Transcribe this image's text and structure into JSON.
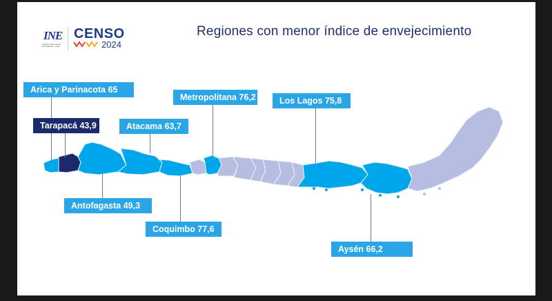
{
  "title": "Regiones con menor índice de envejecimiento",
  "logos": {
    "ine_mark": "INE",
    "ine_sub": "Instituto Nacional de Estadísticas · Chile",
    "censo_word": "CENSO",
    "censo_year": "2024"
  },
  "colors": {
    "highlight": "#00a6ea",
    "lowest": "#1a2a6b",
    "other": "#b6bde0",
    "label_bg": "#2aa6e6"
  },
  "regions": [
    {
      "id": "arica",
      "text": "Arica y Parinacota 65"
    },
    {
      "id": "tarapaca",
      "text": "Tarapacá 43,9"
    },
    {
      "id": "antofagasta",
      "text": "Antofagasta 49,3"
    },
    {
      "id": "atacama",
      "text": "Atacama 63,7"
    },
    {
      "id": "coquimbo",
      "text": "Coquimbo 77,6"
    },
    {
      "id": "metropolitana",
      "text": "Metropolitana 76,2"
    },
    {
      "id": "los_lagos",
      "text": "Los Lagos 75,8"
    },
    {
      "id": "aysen",
      "text": "Aysén 66,2"
    }
  ]
}
